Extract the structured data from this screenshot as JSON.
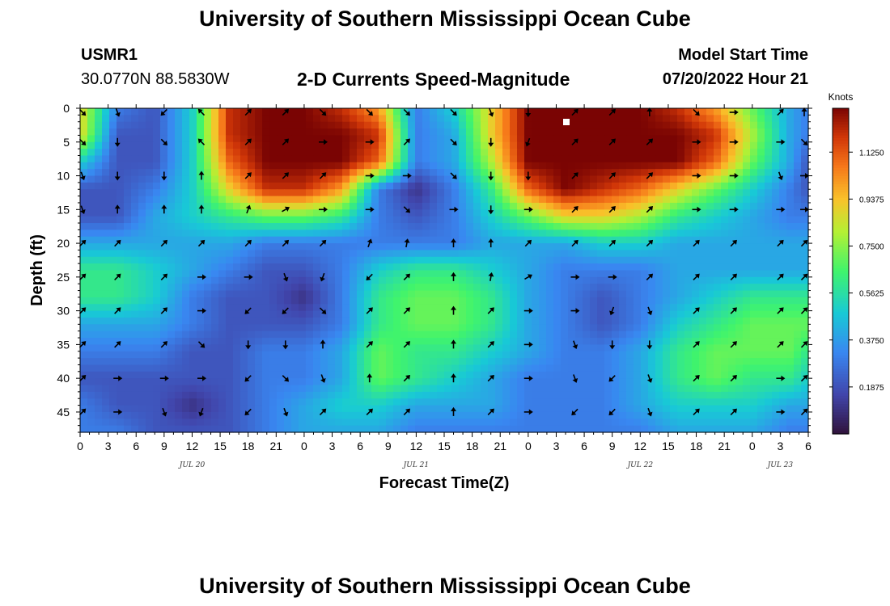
{
  "header": {
    "title": "University of Southern Mississippi Ocean Cube",
    "station_id": "USMR1",
    "location": "30.0770N  88.5830W",
    "plot_title": "2-D Currents Speed-Magnitude",
    "model_label": "Model Start Time",
    "model_time": "07/20/2022 Hour 21"
  },
  "footer": {
    "title": "University of Southern Mississippi Ocean Cube"
  },
  "chart_data": {
    "type": "heatmap",
    "title": "2-D Currents Speed-Magnitude",
    "xlabel": "Forecast Time(Z)",
    "ylabel": "Depth (ft)",
    "x_ticks": [
      "0",
      "3",
      "6",
      "9",
      "12",
      "15",
      "18",
      "21",
      "0",
      "3",
      "6",
      "9",
      "12",
      "15",
      "18",
      "21",
      "0",
      "3",
      "6",
      "9",
      "12",
      "15",
      "18",
      "21",
      "0",
      "3",
      "6"
    ],
    "x_range_hours": [
      0,
      78
    ],
    "y_ticks": [
      "0",
      "5",
      "10",
      "15",
      "20",
      "25",
      "30",
      "35",
      "40",
      "45"
    ],
    "y_range_ft": [
      0,
      48
    ],
    "date_labels": [
      {
        "label": "JUL 20",
        "hour": 12
      },
      {
        "label": "JUL 21",
        "hour": 36
      },
      {
        "label": "JUL 22",
        "hour": 60
      },
      {
        "label": "JUL 23",
        "hour": 75
      }
    ],
    "colorbar": {
      "title": "Knots",
      "range": [
        0,
        1.3
      ],
      "ticks": [
        "0.1875",
        "0.3750",
        "0.5625",
        "0.7500",
        "0.9375",
        "1.1250"
      ],
      "tick_values": [
        0.1875,
        0.375,
        0.5625,
        0.75,
        0.9375,
        1.125
      ]
    },
    "speed_grid": {
      "hours": [
        0,
        4,
        8,
        12,
        16,
        20,
        24,
        28,
        32,
        36,
        40,
        44,
        48,
        52,
        56,
        60,
        64,
        68,
        72,
        76,
        78
      ],
      "depths_ft": [
        0,
        4,
        8,
        12,
        16,
        20,
        24,
        28,
        32,
        36,
        40,
        44,
        48
      ],
      "values": [
        [
          0.9,
          0.3,
          0.2,
          0.5,
          1.2,
          1.3,
          1.3,
          1.2,
          1.0,
          0.3,
          0.5,
          0.9,
          1.3,
          1.3,
          1.3,
          1.3,
          1.2,
          1.0,
          0.7,
          0.4,
          0.3
        ],
        [
          0.9,
          0.2,
          0.2,
          0.5,
          1.2,
          1.3,
          1.3,
          1.3,
          1.2,
          0.3,
          0.4,
          0.9,
          1.3,
          1.3,
          1.3,
          1.3,
          1.3,
          1.2,
          0.8,
          0.4,
          0.3
        ],
        [
          0.5,
          0.2,
          0.2,
          0.5,
          1.1,
          1.3,
          1.3,
          1.3,
          1.1,
          0.3,
          0.4,
          0.8,
          1.3,
          1.3,
          1.3,
          1.3,
          1.3,
          1.1,
          0.7,
          0.4,
          0.2
        ],
        [
          0.2,
          0.2,
          0.3,
          0.5,
          0.9,
          1.2,
          1.2,
          1.0,
          0.3,
          0.1,
          0.3,
          0.6,
          1.1,
          1.3,
          1.2,
          1.1,
          0.9,
          0.7,
          0.5,
          0.3,
          0.2
        ],
        [
          0.2,
          0.2,
          0.4,
          0.5,
          0.6,
          0.7,
          0.7,
          0.6,
          0.3,
          0.2,
          0.3,
          0.5,
          0.7,
          0.9,
          0.9,
          0.8,
          0.6,
          0.5,
          0.4,
          0.3,
          0.3
        ],
        [
          0.4,
          0.4,
          0.4,
          0.4,
          0.4,
          0.3,
          0.3,
          0.3,
          0.3,
          0.3,
          0.3,
          0.4,
          0.4,
          0.4,
          0.5,
          0.5,
          0.4,
          0.4,
          0.4,
          0.4,
          0.4
        ],
        [
          0.6,
          0.6,
          0.5,
          0.4,
          0.3,
          0.2,
          0.2,
          0.3,
          0.5,
          0.6,
          0.6,
          0.5,
          0.4,
          0.3,
          0.3,
          0.3,
          0.4,
          0.4,
          0.4,
          0.4,
          0.4
        ],
        [
          0.6,
          0.6,
          0.5,
          0.3,
          0.2,
          0.2,
          0.1,
          0.3,
          0.6,
          0.7,
          0.7,
          0.6,
          0.4,
          0.3,
          0.2,
          0.3,
          0.4,
          0.5,
          0.6,
          0.6,
          0.6
        ],
        [
          0.4,
          0.4,
          0.4,
          0.3,
          0.2,
          0.2,
          0.2,
          0.3,
          0.6,
          0.7,
          0.7,
          0.6,
          0.4,
          0.3,
          0.2,
          0.3,
          0.5,
          0.6,
          0.7,
          0.7,
          0.7
        ],
        [
          0.3,
          0.3,
          0.3,
          0.2,
          0.2,
          0.3,
          0.3,
          0.4,
          0.7,
          0.6,
          0.6,
          0.5,
          0.4,
          0.3,
          0.3,
          0.4,
          0.6,
          0.7,
          0.7,
          0.7,
          0.6
        ],
        [
          0.2,
          0.2,
          0.2,
          0.2,
          0.2,
          0.3,
          0.3,
          0.4,
          0.7,
          0.6,
          0.5,
          0.4,
          0.3,
          0.3,
          0.3,
          0.4,
          0.6,
          0.7,
          0.6,
          0.6,
          0.5
        ],
        [
          0.3,
          0.2,
          0.2,
          0.1,
          0.2,
          0.3,
          0.4,
          0.5,
          0.5,
          0.4,
          0.4,
          0.4,
          0.3,
          0.3,
          0.3,
          0.4,
          0.5,
          0.5,
          0.5,
          0.4,
          0.4
        ],
        [
          0.3,
          0.3,
          0.2,
          0.2,
          0.2,
          0.3,
          0.4,
          0.4,
          0.4,
          0.3,
          0.3,
          0.3,
          0.3,
          0.3,
          0.3,
          0.3,
          0.4,
          0.4,
          0.4,
          0.3,
          0.3
        ]
      ]
    },
    "vectors": {
      "hours": [
        0,
        4,
        9,
        13,
        18,
        22,
        26,
        31,
        35,
        40,
        44,
        48,
        53,
        57,
        61,
        66,
        70,
        75,
        78
      ],
      "depths_ft": [
        0,
        5,
        10,
        15,
        20,
        25,
        30,
        35,
        40,
        45
      ],
      "angles_deg": [
        [
          135,
          160,
          225,
          315,
          45,
          45,
          135,
          135,
          135,
          135,
          160,
          180,
          45,
          45,
          0,
          135,
          90,
          45,
          0
        ],
        [
          135,
          180,
          135,
          315,
          45,
          45,
          90,
          90,
          45,
          135,
          180,
          200,
          45,
          45,
          45,
          90,
          90,
          90,
          135
        ],
        [
          160,
          180,
          180,
          360,
          45,
          45,
          45,
          90,
          90,
          135,
          180,
          180,
          45,
          45,
          45,
          90,
          90,
          160,
          90
        ],
        [
          160,
          0,
          0,
          0,
          20,
          60,
          90,
          90,
          135,
          90,
          180,
          90,
          45,
          45,
          45,
          90,
          90,
          90,
          90
        ],
        [
          45,
          45,
          45,
          45,
          45,
          45,
          45,
          20,
          10,
          0,
          0,
          45,
          45,
          45,
          45,
          45,
          45,
          45,
          45
        ],
        [
          45,
          45,
          45,
          90,
          90,
          160,
          200,
          225,
          45,
          0,
          10,
          60,
          90,
          90,
          45,
          45,
          45,
          45,
          45
        ],
        [
          45,
          45,
          45,
          90,
          225,
          225,
          135,
          45,
          45,
          0,
          45,
          90,
          90,
          200,
          160,
          45,
          45,
          45,
          45
        ],
        [
          45,
          45,
          45,
          135,
          180,
          180,
          0,
          45,
          45,
          0,
          45,
          90,
          160,
          180,
          180,
          45,
          45,
          45,
          45
        ],
        [
          45,
          90,
          90,
          90,
          225,
          135,
          160,
          0,
          45,
          0,
          45,
          90,
          160,
          225,
          160,
          45,
          45,
          90,
          45
        ],
        [
          45,
          90,
          160,
          200,
          225,
          160,
          45,
          45,
          45,
          0,
          45,
          90,
          225,
          225,
          160,
          45,
          45,
          90,
          45
        ]
      ]
    }
  }
}
